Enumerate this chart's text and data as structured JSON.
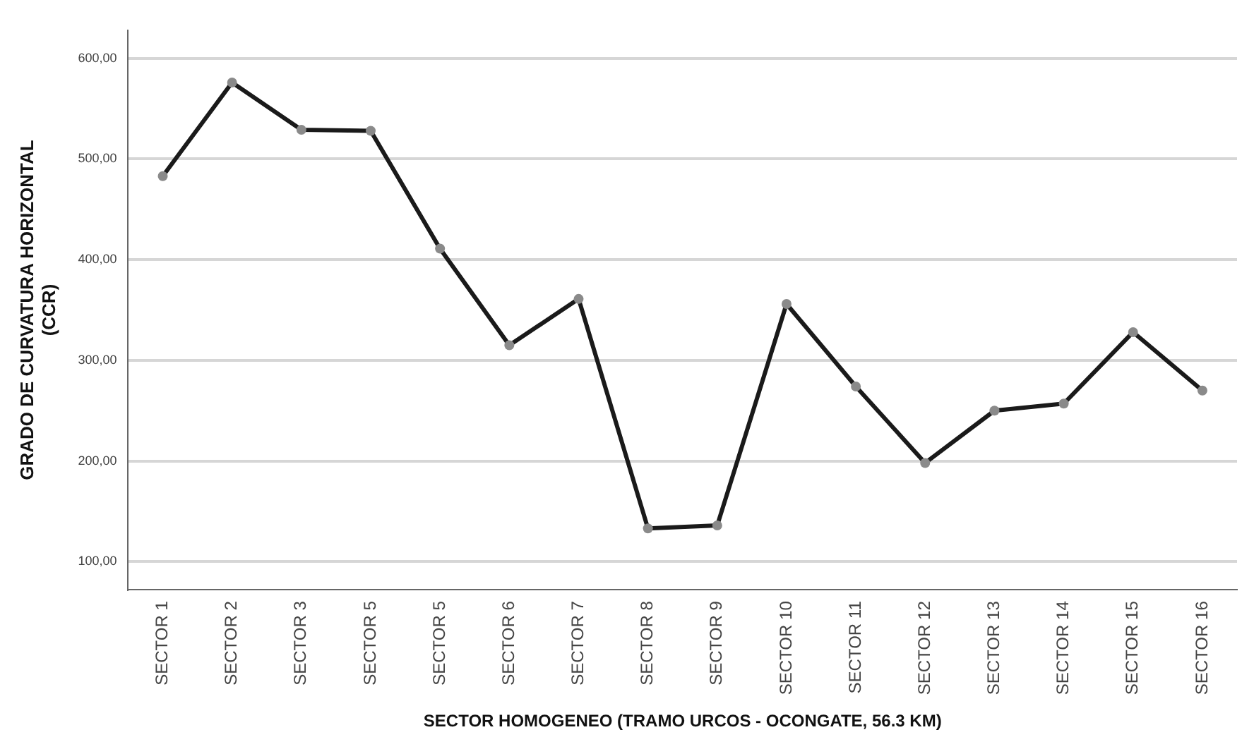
{
  "chart_data": {
    "type": "line",
    "xlabel": "SECTOR HOMOGENEO (TRAMO URCOS - OCONGATE, 56.3 KM)",
    "ylabel": "GRADO DE CURVATURA HORIZONTAL\n(CCR)",
    "categories": [
      "SECTOR 1",
      "SECTOR 2",
      "SECTOR 3",
      "SECTOR 5",
      "SECTOR 5",
      "SECTOR 6",
      "SECTOR 7",
      "SECTOR 8",
      "SECTOR 9",
      "SECTOR 10",
      "SECTOR 11",
      "SECTOR 12",
      "SECTOR 13",
      "SECTOR 14",
      "SECTOR 15",
      "SECTOR 16"
    ],
    "series": [
      {
        "color": "#1a1a1a",
        "values": [
          483,
          576,
          529,
          528,
          411,
          315,
          361,
          133,
          136,
          356,
          274,
          198,
          250,
          257,
          328,
          270
        ]
      }
    ],
    "ylim": [
      72,
      628
    ],
    "yticks": [
      {
        "value": 100,
        "label": "100,00"
      },
      {
        "value": 200,
        "label": "200,00"
      },
      {
        "value": 300,
        "label": "300,00"
      },
      {
        "value": 400,
        "label": "400,00"
      },
      {
        "value": 500,
        "label": "500,00"
      },
      {
        "value": 600,
        "label": "600,00"
      }
    ],
    "grid": "y",
    "legend": false,
    "marker": "circle",
    "line_style": "solid"
  }
}
